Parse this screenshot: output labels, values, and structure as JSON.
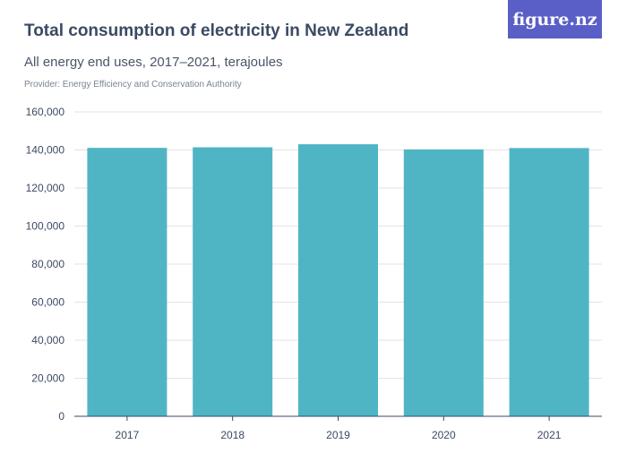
{
  "logo": "figure.nz",
  "chart_data": {
    "type": "bar",
    "title": "Total consumption of electricity in New Zealand",
    "subtitle": "All energy end uses, 2017–2021, terajoules",
    "provider": "Provider: Energy Efficiency and Conservation Authority",
    "categories": [
      "2017",
      "2018",
      "2019",
      "2020",
      "2021"
    ],
    "values": [
      141100,
      141400,
      143000,
      140300,
      141000
    ],
    "ylim": [
      0,
      160000
    ],
    "yticks": [
      "0",
      "20,000",
      "40,000",
      "60,000",
      "80,000",
      "100,000",
      "120,000",
      "140,000",
      "160,000"
    ],
    "grid": true,
    "color": "#4fb5c4"
  }
}
